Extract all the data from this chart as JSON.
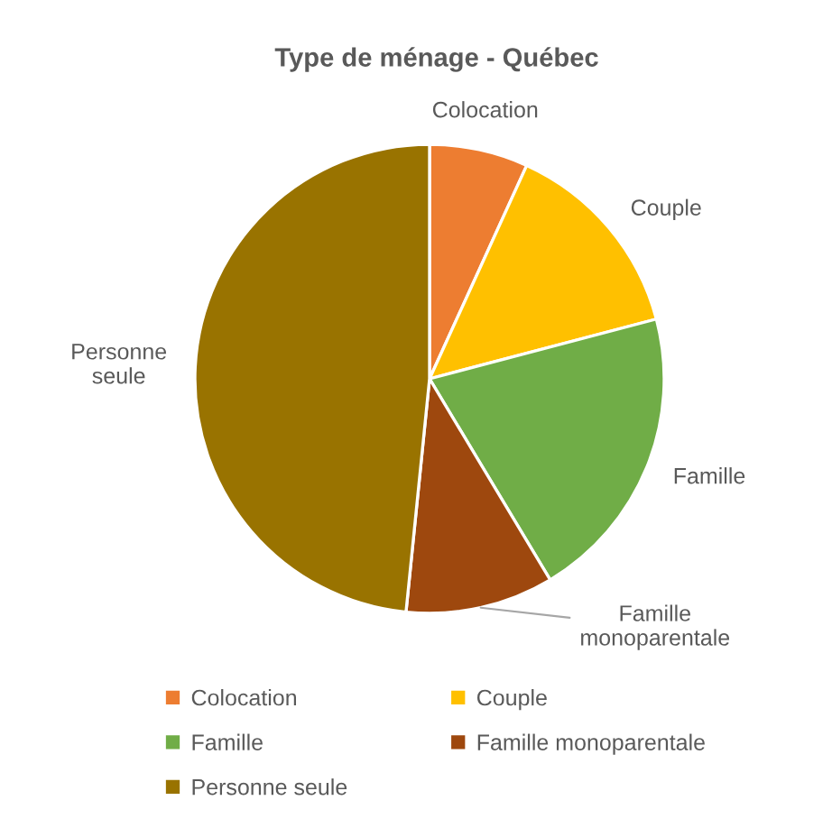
{
  "chart_data": {
    "type": "pie",
    "title": "Type de ménage - Québec",
    "categories": [
      "Colocation",
      "Couple",
      "Famille",
      "Famille monoparentale",
      "Personne seule"
    ],
    "values": [
      6.8,
      14.1,
      20.5,
      10.2,
      48.4
    ],
    "colors": [
      "#ed7d31",
      "#ffc000",
      "#70ad47",
      "#9e480e",
      "#997300"
    ],
    "legend": "bottom"
  }
}
